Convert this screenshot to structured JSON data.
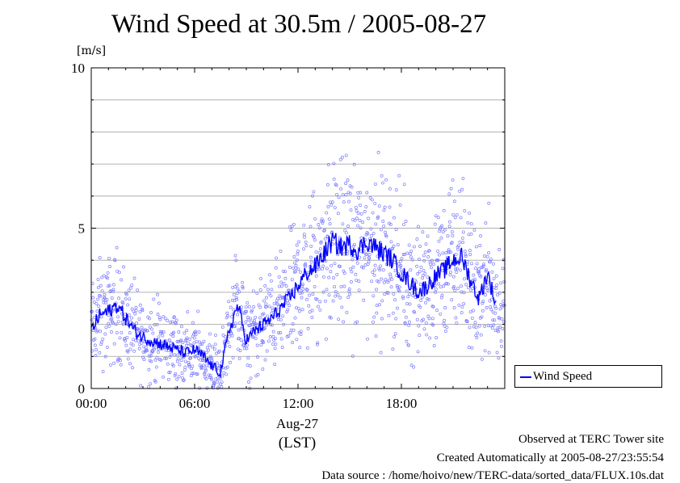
{
  "title": "Wind Speed at 30.5m / 2005-08-27",
  "unit": "[m/s]",
  "date_label": "Aug-27",
  "timezone_label": "(LST)",
  "footer": {
    "observed": "Observed at TERC Tower site",
    "created": "Created Automatically at 2005-08-27/23:55:54",
    "source": "Data source : /home/hoivo/new/TERC-data/sorted_data/FLUX.10s.dat"
  },
  "colors": {
    "line": "#0000ff",
    "scatter": "#7b7bff",
    "grid": "#b0b0b0"
  },
  "chart_data": {
    "type": "line",
    "title": "Wind Speed at 30.5m / 2005-08-27",
    "ylabel": "[m/s]",
    "xlabel": "(LST)",
    "xlim": [
      0,
      24
    ],
    "ylim": [
      0,
      10
    ],
    "x_ticks": [
      "00:00",
      "06:00",
      "12:00",
      "18:00"
    ],
    "y_ticks": [
      "0",
      "5",
      "10"
    ],
    "grid": true,
    "legend": {
      "entries": [
        "Wind Speed"
      ],
      "placement": "bottom-right outside"
    },
    "series": [
      {
        "name": "Wind Speed",
        "style": "line (mean) with scattered raw samples",
        "x": [
          0,
          0.5,
          1,
          1.5,
          2,
          2.5,
          3,
          3.5,
          4,
          4.5,
          5,
          5.5,
          6,
          6.5,
          7,
          7.5,
          8,
          8.5,
          9,
          9.5,
          10,
          10.5,
          11,
          11.5,
          12,
          12.5,
          13,
          13.5,
          14,
          14.5,
          15,
          15.5,
          16,
          16.5,
          17,
          17.5,
          18,
          18.5,
          19,
          19.5,
          20,
          20.5,
          21,
          21.5,
          22,
          22.5,
          23,
          23.5
        ],
        "values": [
          1.8,
          2.3,
          2.4,
          2.6,
          2.2,
          1.8,
          1.6,
          1.5,
          1.4,
          1.3,
          1.2,
          1.1,
          1.2,
          1.0,
          0.7,
          0.5,
          1.8,
          2.6,
          1.5,
          1.8,
          2.0,
          2.2,
          2.5,
          2.8,
          3.2,
          3.6,
          3.8,
          4.2,
          4.6,
          4.4,
          4.5,
          4.3,
          4.6,
          4.4,
          4.2,
          4.0,
          3.6,
          3.3,
          3.0,
          3.2,
          3.5,
          3.7,
          4.0,
          4.1,
          3.4,
          2.8,
          3.6,
          2.6
        ]
      }
    ]
  }
}
